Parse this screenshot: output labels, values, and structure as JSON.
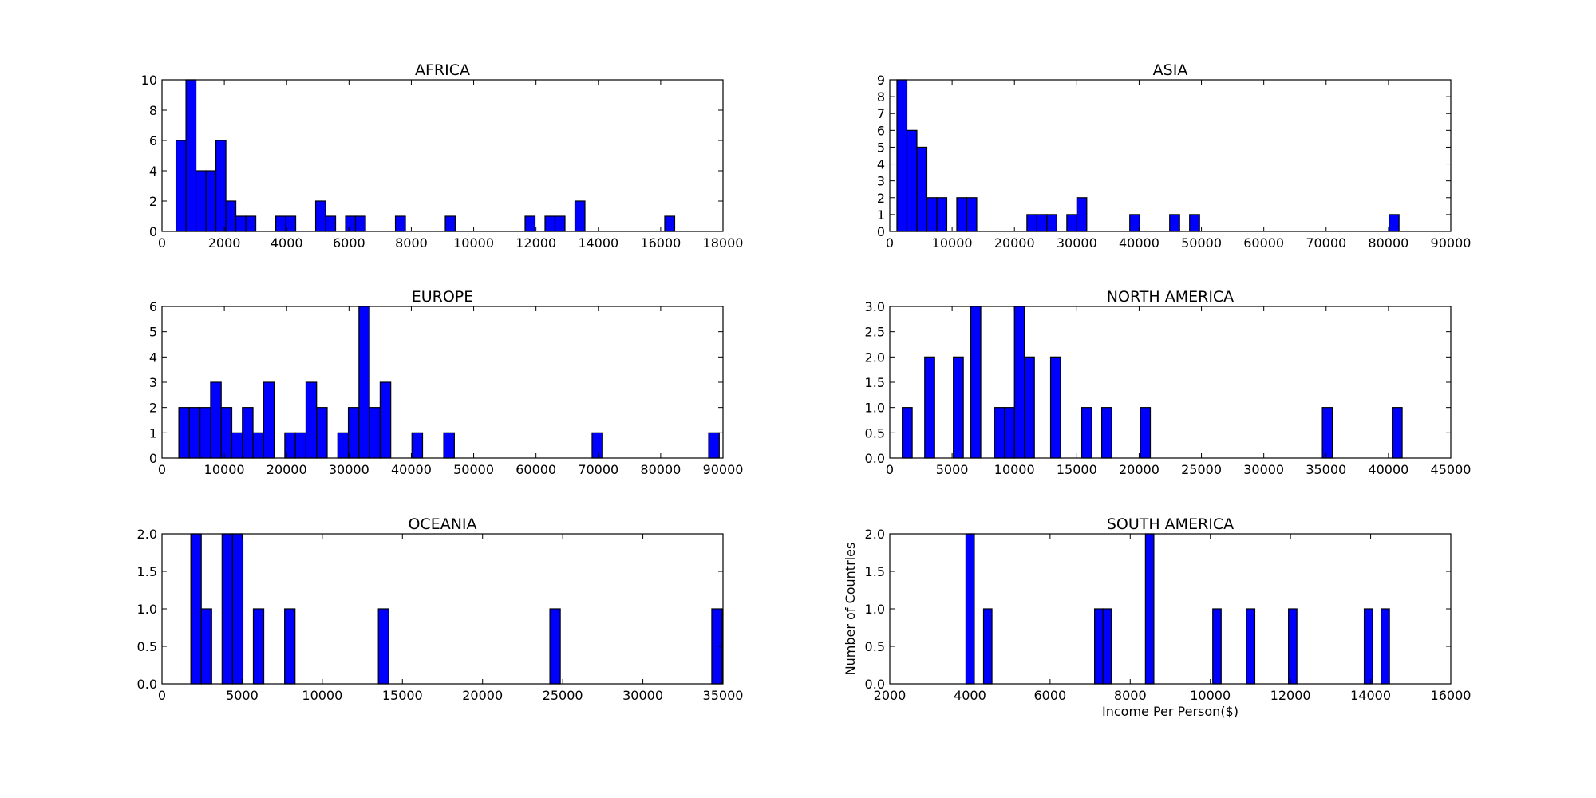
{
  "chart_data": [
    {
      "type": "bar",
      "title": "AFRICA",
      "xlabel": "",
      "ylabel": "",
      "xlim": [
        0,
        18000
      ],
      "ylim": [
        0,
        10
      ],
      "xticks": [
        0,
        2000,
        4000,
        6000,
        8000,
        10000,
        12000,
        14000,
        16000,
        18000
      ],
      "yticks": [
        0,
        2,
        4,
        6,
        8,
        10
      ],
      "bin_width": 320,
      "bins": [
        {
          "x": 450,
          "value": 6
        },
        {
          "x": 770,
          "value": 10
        },
        {
          "x": 1090,
          "value": 4
        },
        {
          "x": 1410,
          "value": 4
        },
        {
          "x": 1730,
          "value": 6
        },
        {
          "x": 2050,
          "value": 2
        },
        {
          "x": 2370,
          "value": 1
        },
        {
          "x": 2690,
          "value": 1
        },
        {
          "x": 3650,
          "value": 1
        },
        {
          "x": 3970,
          "value": 1
        },
        {
          "x": 4930,
          "value": 2
        },
        {
          "x": 5250,
          "value": 1
        },
        {
          "x": 5890,
          "value": 1
        },
        {
          "x": 6210,
          "value": 1
        },
        {
          "x": 7490,
          "value": 1
        },
        {
          "x": 9090,
          "value": 1
        },
        {
          "x": 11650,
          "value": 1
        },
        {
          "x": 12290,
          "value": 1
        },
        {
          "x": 12610,
          "value": 1
        },
        {
          "x": 13250,
          "value": 2
        },
        {
          "x": 16130,
          "value": 1
        }
      ],
      "bar_color": "#0000ff"
    },
    {
      "type": "bar",
      "title": "ASIA",
      "xlabel": "",
      "ylabel": "",
      "xlim": [
        0,
        90000
      ],
      "ylim": [
        0,
        9
      ],
      "xticks": [
        0,
        10000,
        20000,
        30000,
        40000,
        50000,
        60000,
        70000,
        80000,
        90000
      ],
      "yticks": [
        0,
        1,
        2,
        3,
        4,
        5,
        6,
        7,
        8,
        9
      ],
      "bin_width": 1600,
      "bins": [
        {
          "x": 1150,
          "value": 9
        },
        {
          "x": 2750,
          "value": 6
        },
        {
          "x": 4350,
          "value": 5
        },
        {
          "x": 5950,
          "value": 2
        },
        {
          "x": 7550,
          "value": 2
        },
        {
          "x": 10750,
          "value": 2
        },
        {
          "x": 12350,
          "value": 2
        },
        {
          "x": 22000,
          "value": 1
        },
        {
          "x": 23600,
          "value": 1
        },
        {
          "x": 25200,
          "value": 1
        },
        {
          "x": 28400,
          "value": 1
        },
        {
          "x": 30000,
          "value": 2
        },
        {
          "x": 38500,
          "value": 1
        },
        {
          "x": 44900,
          "value": 1
        },
        {
          "x": 48100,
          "value": 1
        },
        {
          "x": 80100,
          "value": 1
        }
      ],
      "bar_color": "#0000ff"
    },
    {
      "type": "bar",
      "title": "EUROPE",
      "xlabel": "",
      "ylabel": "",
      "xlim": [
        0,
        90000
      ],
      "ylim": [
        0,
        6
      ],
      "xticks": [
        0,
        10000,
        20000,
        30000,
        40000,
        50000,
        60000,
        70000,
        80000,
        90000
      ],
      "yticks": [
        0,
        1,
        2,
        3,
        4,
        5,
        6
      ],
      "bin_width": 1700,
      "bins": [
        {
          "x": 2700,
          "value": 2
        },
        {
          "x": 4400,
          "value": 2
        },
        {
          "x": 6100,
          "value": 2
        },
        {
          "x": 7800,
          "value": 3
        },
        {
          "x": 9500,
          "value": 2
        },
        {
          "x": 11200,
          "value": 1
        },
        {
          "x": 12900,
          "value": 2
        },
        {
          "x": 14600,
          "value": 1
        },
        {
          "x": 16300,
          "value": 3
        },
        {
          "x": 19700,
          "value": 1
        },
        {
          "x": 21400,
          "value": 1
        },
        {
          "x": 23100,
          "value": 3
        },
        {
          "x": 24800,
          "value": 2
        },
        {
          "x": 28200,
          "value": 1
        },
        {
          "x": 29900,
          "value": 2
        },
        {
          "x": 31600,
          "value": 6
        },
        {
          "x": 33300,
          "value": 2
        },
        {
          "x": 35000,
          "value": 3
        },
        {
          "x": 40100,
          "value": 1
        },
        {
          "x": 45200,
          "value": 1
        },
        {
          "x": 69000,
          "value": 1
        },
        {
          "x": 87700,
          "value": 1
        }
      ],
      "bar_color": "#0000ff"
    },
    {
      "type": "bar",
      "title": "NORTH AMERICA",
      "xlabel": "",
      "ylabel": "",
      "xlim": [
        0,
        45000
      ],
      "ylim": [
        0,
        3.0
      ],
      "xticks": [
        0,
        5000,
        10000,
        15000,
        20000,
        25000,
        30000,
        35000,
        40000,
        45000
      ],
      "yticks": [
        "0.0",
        "0.5",
        "1.0",
        "1.5",
        "2.0",
        "2.5",
        "3.0"
      ],
      "bin_width": 800,
      "bins": [
        {
          "x": 1000,
          "value": 1
        },
        {
          "x": 2800,
          "value": 2
        },
        {
          "x": 5100,
          "value": 2
        },
        {
          "x": 6500,
          "value": 3
        },
        {
          "x": 8400,
          "value": 1
        },
        {
          "x": 9200,
          "value": 1
        },
        {
          "x": 10000,
          "value": 3
        },
        {
          "x": 10800,
          "value": 2
        },
        {
          "x": 12900,
          "value": 2
        },
        {
          "x": 15400,
          "value": 1
        },
        {
          "x": 17000,
          "value": 1
        },
        {
          "x": 20100,
          "value": 1
        },
        {
          "x": 34700,
          "value": 1
        },
        {
          "x": 40300,
          "value": 1
        }
      ],
      "bar_color": "#0000ff"
    },
    {
      "type": "bar",
      "title": "OCEANIA",
      "xlabel": "",
      "ylabel": "",
      "xlim": [
        0,
        35000
      ],
      "ylim": [
        0,
        2.0
      ],
      "xticks": [
        0,
        5000,
        10000,
        15000,
        20000,
        25000,
        30000,
        35000
      ],
      "yticks": [
        "0.0",
        "0.5",
        "1.0",
        "1.5",
        "2.0"
      ],
      "bin_width": 650,
      "bins": [
        {
          "x": 1800,
          "value": 2
        },
        {
          "x": 2450,
          "value": 1
        },
        {
          "x": 3750,
          "value": 2
        },
        {
          "x": 4400,
          "value": 2
        },
        {
          "x": 5700,
          "value": 1
        },
        {
          "x": 7650,
          "value": 1
        },
        {
          "x": 13500,
          "value": 1
        },
        {
          "x": 24200,
          "value": 1
        },
        {
          "x": 34300,
          "value": 1
        }
      ],
      "bar_color": "#0000ff"
    },
    {
      "type": "bar",
      "title": "SOUTH AMERICA",
      "xlabel": "Income Per Person($)",
      "ylabel": "Number of Countries",
      "xlim": [
        2000,
        16000
      ],
      "ylim": [
        0,
        2.0
      ],
      "xticks": [
        2000,
        4000,
        6000,
        8000,
        10000,
        12000,
        14000,
        16000
      ],
      "yticks": [
        "0.0",
        "0.5",
        "1.0",
        "1.5",
        "2.0"
      ],
      "bin_width": 210,
      "bins": [
        {
          "x": 3900,
          "value": 2
        },
        {
          "x": 4340,
          "value": 1
        },
        {
          "x": 7110,
          "value": 1
        },
        {
          "x": 7320,
          "value": 1
        },
        {
          "x": 8380,
          "value": 2
        },
        {
          "x": 10060,
          "value": 1
        },
        {
          "x": 10900,
          "value": 1
        },
        {
          "x": 11950,
          "value": 1
        },
        {
          "x": 13840,
          "value": 1
        },
        {
          "x": 14260,
          "value": 1
        }
      ],
      "bar_color": "#0000ff"
    }
  ]
}
